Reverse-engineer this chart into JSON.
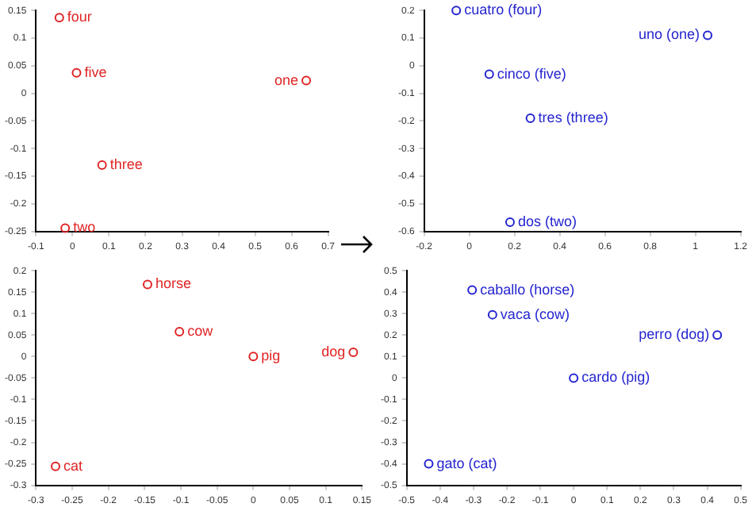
{
  "chart_data": [
    {
      "type": "scatter",
      "x": [
        0.64,
        -0.02,
        0.081,
        -0.036,
        0.011
      ],
      "series": [
        {
          "color": "#e02424",
          "values": [
            0.023,
            -0.244,
            -0.13,
            0.137,
            0.037
          ]
        }
      ],
      "xlim": [
        -0.1,
        0.7
      ],
      "xticks": [
        -0.1,
        0,
        0.1,
        0.2,
        0.3,
        0.4,
        0.5,
        0.6,
        0.7
      ],
      "ylim": [
        -0.25,
        0.15
      ],
      "yticks": [
        -0.25,
        -0.2,
        -0.15,
        -0.1,
        -0.05,
        0,
        0.05,
        0.1,
        0.15
      ],
      "marker": "circle",
      "grid": false,
      "legend": false,
      "annotations": [
        {
          "text": "one",
          "x": 0.64,
          "y": 0.023
        },
        {
          "text": "two",
          "x": -0.02,
          "y": -0.244
        },
        {
          "text": "three",
          "x": 0.081,
          "y": -0.13
        },
        {
          "text": "four",
          "x": -0.036,
          "y": 0.137
        },
        {
          "text": "five",
          "x": 0.011,
          "y": 0.037
        }
      ]
    },
    {
      "type": "scatter",
      "x": [
        1.054,
        0.18,
        0.27,
        -0.058,
        0.088
      ],
      "series": [
        {
          "color": "#2424d0",
          "values": [
            0.11,
            -0.567,
            -0.19,
            0.2,
            -0.031
          ]
        }
      ],
      "xlim": [
        -0.2,
        1.2
      ],
      "xticks": [
        -0.2,
        0,
        0.2,
        0.4,
        0.6,
        0.8,
        1,
        1.2
      ],
      "ylim": [
        -0.6,
        0.2
      ],
      "yticks": [
        -0.6,
        -0.5,
        -0.4,
        -0.3,
        -0.2,
        -0.1,
        0,
        0.1,
        0.2
      ],
      "marker": "circle",
      "grid": false,
      "legend": false,
      "annotations": [
        {
          "text": "uno (one)",
          "x": 1.054,
          "y": 0.11
        },
        {
          "text": "dos (two)",
          "x": 0.18,
          "y": -0.567
        },
        {
          "text": "tres (three)",
          "x": 0.27,
          "y": -0.19
        },
        {
          "text": "cuatro (four)",
          "x": -0.058,
          "y": 0.2
        },
        {
          "text": "cinco (five)",
          "x": 0.088,
          "y": -0.031
        }
      ]
    },
    {
      "type": "scatter",
      "x": [
        -0.146,
        -0.102,
        0,
        0.138,
        -0.273
      ],
      "series": [
        {
          "color": "#e02424",
          "values": [
            0.168,
            0.058,
            0,
            0.01,
            -0.256
          ]
        }
      ],
      "xlim": [
        -0.3,
        0.15
      ],
      "xticks": [
        -0.3,
        -0.25,
        -0.2,
        -0.15,
        -0.1,
        -0.05,
        0,
        0.05,
        0.1,
        0.15
      ],
      "ylim": [
        -0.3,
        0.2
      ],
      "yticks": [
        -0.3,
        -0.25,
        -0.2,
        -0.15,
        -0.1,
        -0.05,
        0,
        0.05,
        0.1,
        0.15,
        0.2
      ],
      "marker": "circle",
      "grid": false,
      "legend": false,
      "annotations": [
        {
          "text": "horse",
          "x": -0.146,
          "y": 0.168
        },
        {
          "text": "cow",
          "x": -0.102,
          "y": 0.058
        },
        {
          "text": "pig",
          "x": 0,
          "y": 0
        },
        {
          "text": "dog",
          "x": 0.138,
          "y": 0.01
        },
        {
          "text": "cat",
          "x": -0.273,
          "y": -0.256
        }
      ]
    },
    {
      "type": "scatter",
      "x": [
        -0.304,
        -0.243,
        0,
        0.43,
        -0.434
      ],
      "series": [
        {
          "color": "#2424d0",
          "values": [
            0.41,
            0.295,
            0,
            0.2,
            -0.4
          ]
        }
      ],
      "xlim": [
        -0.5,
        0.5
      ],
      "xticks": [
        -0.5,
        -0.4,
        -0.3,
        -0.2,
        -0.1,
        0,
        0.1,
        0.2,
        0.3,
        0.4,
        0.5
      ],
      "ylim": [
        -0.5,
        0.5
      ],
      "yticks": [
        -0.5,
        -0.4,
        -0.3,
        -0.2,
        -0.1,
        0,
        0.1,
        0.2,
        0.3,
        0.4,
        0.5
      ],
      "marker": "circle",
      "grid": false,
      "legend": false,
      "annotations": [
        {
          "text": "caballo (horse)",
          "x": -0.304,
          "y": 0.41
        },
        {
          "text": "vaca (cow)",
          "x": -0.243,
          "y": 0.295
        },
        {
          "text": "cardo (pig)",
          "x": 0,
          "y": 0
        },
        {
          "text": "perro (dog)",
          "x": 0.43,
          "y": 0.2
        },
        {
          "text": "gato (cat)",
          "x": -0.434,
          "y": -0.4
        }
      ]
    }
  ]
}
